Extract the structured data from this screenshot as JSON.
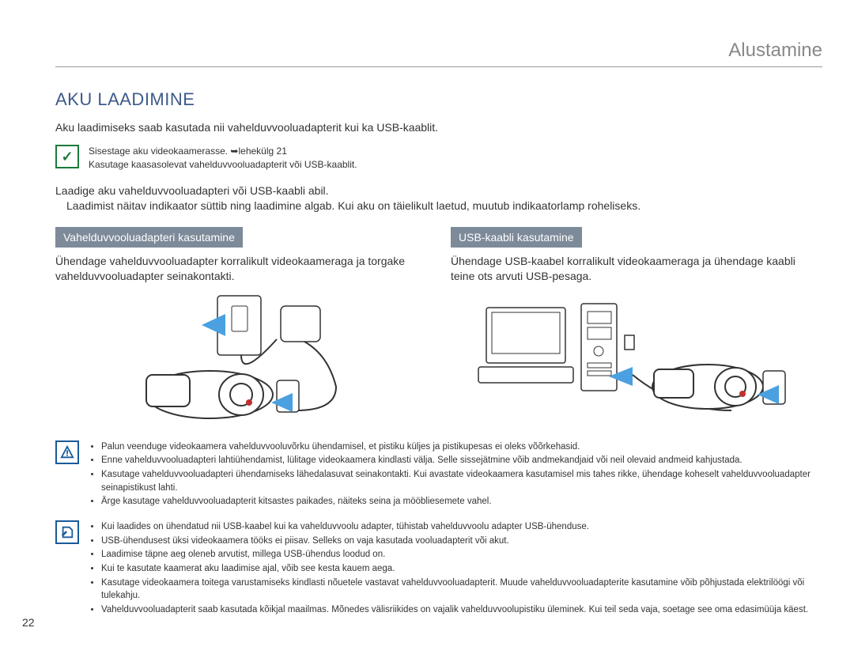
{
  "header": {
    "chapter": "Alustamine"
  },
  "section": {
    "title": "AKU LAADIMINE",
    "intro": "Aku laadimiseks saab kasutada nii vahelduvvooluadapterit kui ka USB-kaablit."
  },
  "preTip": {
    "line1": "Sisestage aku videokaamerasse. ➥lehekülg 21",
    "line2": "Kasutage kaasasolevat vahelduvvooluadapterit või USB-kaablit."
  },
  "instructions": {
    "line1": "Laadige aku vahelduvvooluadapteri või USB-kaabli abil.",
    "line2": "Laadimist näitav indikaator süttib ning laadimine algab. Kui aku on täielikult laetud, muutub indikaatorlamp roheliseks."
  },
  "columns": {
    "left": {
      "header": "Vahelduvvooluadapteri kasutamine",
      "text": "Ühendage vahelduvvooluadapter korralikult videokaameraga ja torgake vahelduvvooluadapter seinakontakti."
    },
    "right": {
      "header": "USB-kaabli kasutamine",
      "text": "Ühendage USB-kaabel korralikult videokaameraga ja ühendage kaabli teine ots arvuti USB-pesaga."
    }
  },
  "warnings": [
    "Palun veenduge videokaamera vahelduvvooluvõrku ühendamisel, et pistiku küljes ja pistikupesas ei oleks võõrkehasid.",
    "Enne vahelduvvooluadapteri lahtiühendamist, lülitage videokaamera kindlasti välja. Selle sissejätmine võib andmekandjaid või neil olevaid andmeid kahjustada.",
    "Kasutage vahelduvvooluadapteri ühendamiseks lähedalasuvat seinakontakti. Kui avastate videokaamera kasutamisel mis tahes rikke, ühendage koheselt vahelduvvooluadapter seinapistikust lahti.",
    "Ärge kasutage vahelduvvooluadapterit kitsastes paikades, näiteks seina ja mööbliesemete vahel."
  ],
  "notes": [
    "Kui laadides on ühendatud nii USB-kaabel kui ka vahelduvvoolu adapter, tühistab vahelduvvoolu adapter USB-ühenduse.",
    "USB-ühendusest üksi videokaamera tööks ei piisav. Selleks on vaja kasutada vooluadapterit või akut.",
    "Laadimise täpne aeg oleneb arvutist, millega USB-ühendus loodud on.",
    "Kui te kasutate kaamerat aku laadimise ajal, võib see kesta kauem aega.",
    "Kasutage videokaamera toitega varustamiseks kindlasti nõuetele vastavat vahelduvvooluadapterit. Muude vahelduvvooluadapterite kasutamine võib põhjustada elektrilöögi või tulekahju.",
    "Vahelduvvooluadapterit saab kasutada kõikjal maailmas. Mõnedes välisriikides on vajalik vahelduvvoolupistiku üleminek. Kui teil seda vaja, soetage see oma edasimüüja käest."
  ],
  "pageNumber": "22"
}
